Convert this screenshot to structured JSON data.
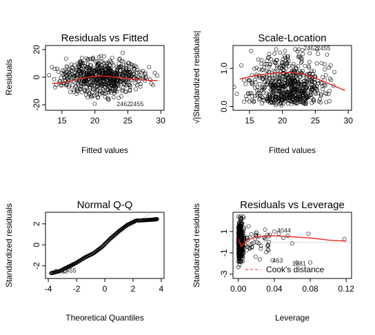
{
  "chart_data": [
    {
      "type": "scatter",
      "title": "Residuals vs Fitted",
      "xlabel": "Fitted values",
      "ylabel": "Residuals",
      "xlim": [
        12.5,
        30.5
      ],
      "ylim": [
        -24,
        23
      ],
      "xticks": [
        15,
        20,
        25,
        30
      ],
      "yticks": [
        -20,
        0,
        20
      ],
      "reference_line": 0,
      "smooth": {
        "x": [
          13.5,
          15,
          17,
          19,
          21,
          23,
          25,
          27,
          29.5
        ],
        "y": [
          -4.5,
          -4,
          -2,
          0,
          1,
          0,
          -1,
          -2,
          -2.5
        ]
      },
      "annotations": [
        {
          "text": "2462",
          "x": 23.3,
          "y": -21
        },
        {
          "text": "2455",
          "x": 25.3,
          "y": -21
        }
      ],
      "cloud": {
        "type": "band",
        "x_center": 21,
        "x_extent": 9,
        "top": 18,
        "bottom": -20
      }
    },
    {
      "type": "scatter",
      "title": "Scale-Location",
      "xlabel": "Fitted values",
      "ylabel": "√|Standardized residuals|",
      "xlim": [
        12.5,
        30.5
      ],
      "ylim": [
        -0.1,
        1.6
      ],
      "xticks": [
        15,
        20,
        25,
        30
      ],
      "yticks": [
        0.0,
        1.0
      ],
      "smooth": {
        "x": [
          13.5,
          15,
          17,
          19,
          21,
          23,
          25,
          27,
          29.5
        ],
        "y": [
          0.72,
          0.78,
          0.84,
          0.88,
          0.9,
          0.86,
          0.75,
          0.6,
          0.42
        ]
      },
      "annotations": [
        {
          "text": "2462",
          "x": 23.2,
          "y": 1.47
        },
        {
          "text": "2455",
          "x": 25.2,
          "y": 1.47
        }
      ],
      "cloud": {
        "type": "scale",
        "x_center": 21,
        "x_extent": 9,
        "top": 1.5,
        "bottom": 0.02
      }
    },
    {
      "type": "scatter",
      "title": "Normal Q-Q",
      "xlabel": "Theoretical Quantiles",
      "ylabel": "Standardized residuals",
      "xlim": [
        -4.2,
        4.2
      ],
      "ylim": [
        -3.2,
        3.1
      ],
      "xticks": [
        -4,
        -2,
        0,
        2,
        4
      ],
      "yticks": [
        -2,
        0,
        2
      ],
      "qq_curve": {
        "x": [
          -3.8,
          -3.2,
          -2.6,
          -2,
          -1.4,
          -0.8,
          -0.2,
          0.4,
          1,
          1.6,
          2.2,
          2.8,
          3.4,
          3.7
        ],
        "y": [
          -2.7,
          -2.5,
          -2.1,
          -1.7,
          -1.2,
          -0.8,
          -0.2,
          0.6,
          1.3,
          1.9,
          2.3,
          2.35,
          2.4,
          2.45
        ]
      },
      "annotations": [
        {
          "text": "2462",
          "x": -3.6,
          "y": -2.7
        },
        {
          "text": "2455",
          "x": -3.0,
          "y": -2.65
        }
      ]
    },
    {
      "type": "scatter",
      "title": "Residuals vs Leverage",
      "xlabel": "Leverage",
      "ylabel": "Standardized residuals",
      "xlim": [
        -0.006,
        0.126
      ],
      "ylim": [
        -3.4,
        2.8
      ],
      "xticks": [
        0.0,
        0.04,
        0.08,
        0.12
      ],
      "xtick_labels": [
        "0.00",
        "0.04",
        "0.08",
        "0.12"
      ],
      "yticks": [
        -3,
        -1,
        1
      ],
      "reference_line": 0,
      "smooth": {
        "x": [
          0.0,
          0.003,
          0.006,
          0.01,
          0.02,
          0.04,
          0.06,
          0.08,
          0.1,
          0.12
        ],
        "y": [
          0.3,
          -0.4,
          -0.2,
          0.2,
          0.5,
          0.6,
          0.5,
          0.4,
          0.2,
          0.1
        ]
      },
      "points": [
        [
          0.01,
          0.4
        ],
        [
          0.015,
          -0.5
        ],
        [
          0.02,
          0.9
        ],
        [
          0.025,
          -0.6
        ],
        [
          0.03,
          0.3
        ],
        [
          0.035,
          0.7
        ],
        [
          0.038,
          -1.7
        ],
        [
          0.04,
          1.0
        ],
        [
          0.045,
          0.8
        ],
        [
          0.05,
          0.4
        ],
        [
          0.055,
          0.6
        ],
        [
          0.06,
          -0.1
        ],
        [
          0.065,
          -1.9
        ],
        [
          0.078,
          0.8
        ],
        [
          0.08,
          -1.9
        ],
        [
          0.118,
          0.3
        ]
      ],
      "annotations": [
        {
          "text": "4044",
          "x": 0.043,
          "y": 0.9
        },
        {
          "text": "463",
          "x": 0.038,
          "y": -1.9
        },
        {
          "text": "1881",
          "x": 0.06,
          "y": -2.2
        }
      ],
      "legend": {
        "label": "Cook's distance",
        "placement": "bottom-center"
      }
    }
  ]
}
